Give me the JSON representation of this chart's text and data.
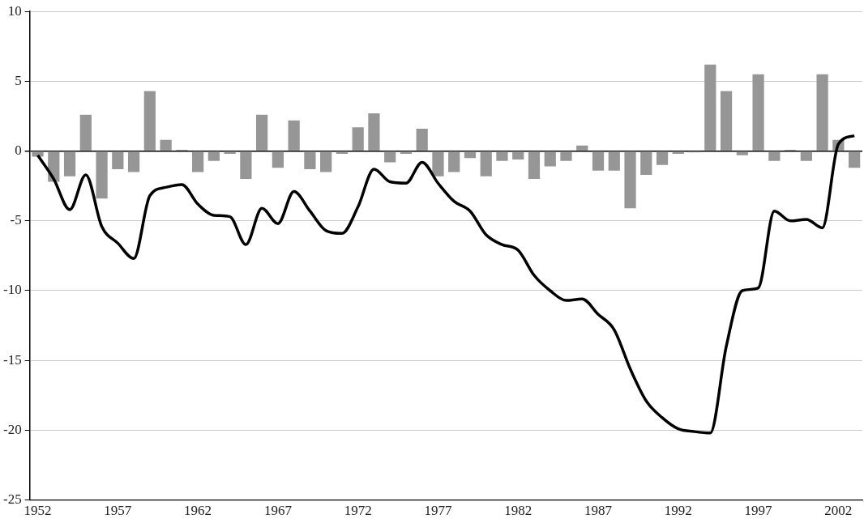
{
  "chart_data": {
    "type": "bar",
    "categories": [
      "1952",
      null,
      null,
      null,
      null,
      "1957",
      null,
      null,
      null,
      null,
      "1962",
      null,
      null,
      null,
      null,
      "1967",
      null,
      null,
      null,
      null,
      "1972",
      null,
      null,
      null,
      null,
      "1977",
      null,
      null,
      null,
      null,
      "1982",
      null,
      null,
      null,
      null,
      "1987",
      null,
      null,
      null,
      null,
      "1992",
      null,
      null,
      null,
      null,
      "1997",
      null,
      null,
      null,
      null,
      "2002",
      null
    ],
    "series": [
      {
        "color": "#969696",
        "values": [
          -0.4,
          -2.2,
          -1.8,
          2.6,
          -3.4,
          -1.3,
          -1.5,
          4.3,
          0.8,
          0.1,
          -1.5,
          -0.7,
          -0.2,
          -2.0,
          2.6,
          -1.2,
          2.2,
          -1.3,
          -1.5,
          -0.2,
          1.7,
          2.7,
          -0.8,
          -0.2,
          1.6,
          -1.8,
          -1.5,
          -0.5,
          -1.8,
          -0.7,
          -0.6,
          -2.0,
          -1.1,
          -0.7,
          0.4,
          -1.4,
          -1.4,
          -4.1,
          -1.7,
          -1.0,
          -0.2,
          -0.1,
          6.2,
          4.3,
          -0.3,
          5.5,
          -0.7,
          0.1,
          -0.7,
          5.5,
          0.8,
          -1.2
        ]
      },
      {
        "type": "line",
        "color": "#000000",
        "marker": "none",
        "line_style": "solid",
        "values": [
          -0.3,
          -2.0,
          -4.2,
          -1.7,
          -5.4,
          -6.6,
          -7.7,
          -3.2,
          -2.6,
          -2.4,
          -3.8,
          -4.6,
          -4.7,
          -6.7,
          -4.1,
          -5.2,
          -2.9,
          -4.3,
          -5.7,
          -5.9,
          -4.0,
          -1.3,
          -2.2,
          -2.3,
          -0.8,
          -2.3,
          -3.6,
          -4.3,
          -6.0,
          -6.7,
          -7.1,
          -8.9,
          -10.0,
          -10.7,
          -10.6,
          -11.7,
          -12.8,
          -15.6,
          -17.9,
          -19.1,
          -19.9,
          -20.1,
          -20.2,
          -14.0,
          -10.0,
          -9.8,
          -4.3,
          -5.0,
          -4.9,
          -5.5,
          0.5,
          1.1
        ]
      }
    ],
    "ylim": [
      -25,
      10
    ],
    "yticks": [
      -25,
      -20,
      -15,
      -10,
      -5,
      0,
      5,
      10
    ],
    "grid": "y",
    "legend": false
  }
}
